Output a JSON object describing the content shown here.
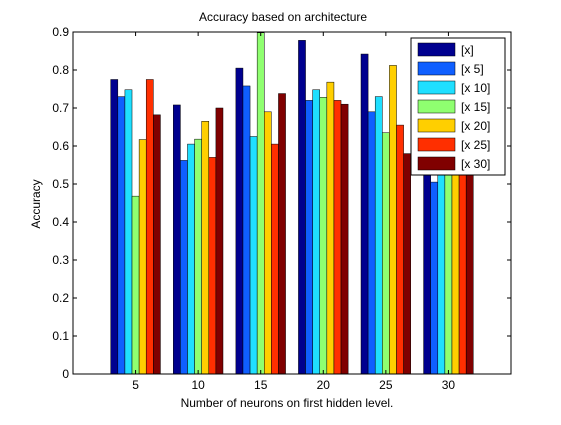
{
  "chart_data": {
    "type": "bar",
    "title": "Accuracy based on architecture",
    "xlabel": "Number of neurons on first hidden level.",
    "ylabel": "Accuracy",
    "categories": [
      "5",
      "10",
      "15",
      "20",
      "25",
      "30"
    ],
    "ylim": [
      0,
      0.9
    ],
    "yticks": [
      "0",
      "0.1",
      "0.2",
      "0.3",
      "0.4",
      "0.5",
      "0.6",
      "0.7",
      "0.8",
      "0.9"
    ],
    "grid": false,
    "legend_position": "top-right",
    "series": [
      {
        "name": "[x]",
        "color": "#00008f",
        "values": [
          0.775,
          0.708,
          0.805,
          0.878,
          0.842,
          0.6
        ]
      },
      {
        "name": "[x 5]",
        "color": "#0f5fff",
        "values": [
          0.73,
          0.562,
          0.758,
          0.72,
          0.69,
          0.505
        ]
      },
      {
        "name": "[x 10]",
        "color": "#1fdfff",
        "values": [
          0.748,
          0.605,
          0.625,
          0.748,
          0.73,
          0.6
        ]
      },
      {
        "name": "[x 15]",
        "color": "#8fff70",
        "values": [
          0.468,
          0.618,
          0.898,
          0.728,
          0.635,
          0.6
        ]
      },
      {
        "name": "[x 20]",
        "color": "#ffcf00",
        "values": [
          0.617,
          0.665,
          0.69,
          0.768,
          0.812,
          0.6
        ]
      },
      {
        "name": "[x 25]",
        "color": "#ff2f00",
        "values": [
          0.775,
          0.57,
          0.605,
          0.72,
          0.655,
          0.6
        ]
      },
      {
        "name": "[x 30]",
        "color": "#800000",
        "values": [
          0.682,
          0.7,
          0.738,
          0.71,
          0.58,
          0.6
        ]
      }
    ]
  }
}
